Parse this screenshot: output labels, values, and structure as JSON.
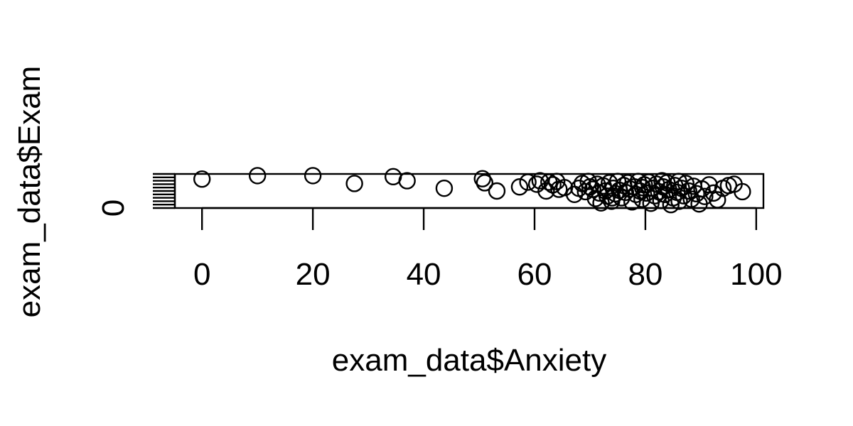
{
  "chart_data": {
    "type": "scatter",
    "title": "",
    "xlabel": "exam_data$Anxiety",
    "ylabel": "exam_data$Exam",
    "xlim": [
      -4.9,
      101.3
    ],
    "ylim": [
      0,
      100
    ],
    "xticks": [
      0,
      20,
      40,
      60,
      80,
      100
    ],
    "yticks": [
      0,
      10,
      20,
      30,
      40,
      50,
      60,
      70,
      80,
      90,
      100
    ],
    "ytick_labels_shown": [
      "0"
    ],
    "grid": false,
    "legend": "none",
    "marker": "open-circle",
    "points": [
      {
        "x": 0.0,
        "y": 85
      },
      {
        "x": 10.0,
        "y": 95
      },
      {
        "x": 20.0,
        "y": 95
      },
      {
        "x": 27.5,
        "y": 72
      },
      {
        "x": 34.5,
        "y": 92
      },
      {
        "x": 37.0,
        "y": 80
      },
      {
        "x": 43.7,
        "y": 58
      },
      {
        "x": 50.6,
        "y": 86
      },
      {
        "x": 51.0,
        "y": 74
      },
      {
        "x": 53.2,
        "y": 50
      },
      {
        "x": 57.3,
        "y": 62
      },
      {
        "x": 58.8,
        "y": 76
      },
      {
        "x": 60.4,
        "y": 70
      },
      {
        "x": 61.0,
        "y": 80
      },
      {
        "x": 62.1,
        "y": 50
      },
      {
        "x": 62.6,
        "y": 76
      },
      {
        "x": 63.3,
        "y": 68
      },
      {
        "x": 64.0,
        "y": 78
      },
      {
        "x": 64.4,
        "y": 55
      },
      {
        "x": 65.4,
        "y": 60
      },
      {
        "x": 67.2,
        "y": 40
      },
      {
        "x": 68.0,
        "y": 58
      },
      {
        "x": 68.6,
        "y": 72
      },
      {
        "x": 69.2,
        "y": 48
      },
      {
        "x": 69.7,
        "y": 78
      },
      {
        "x": 70.0,
        "y": 62
      },
      {
        "x": 70.5,
        "y": 55
      },
      {
        "x": 71.0,
        "y": 28
      },
      {
        "x": 71.3,
        "y": 70
      },
      {
        "x": 71.7,
        "y": 44
      },
      {
        "x": 72.0,
        "y": 15
      },
      {
        "x": 72.4,
        "y": 65
      },
      {
        "x": 72.8,
        "y": 50
      },
      {
        "x": 73.1,
        "y": 35
      },
      {
        "x": 73.5,
        "y": 74
      },
      {
        "x": 73.9,
        "y": 20
      },
      {
        "x": 74.2,
        "y": 58
      },
      {
        "x": 74.6,
        "y": 42
      },
      {
        "x": 75.0,
        "y": 78
      },
      {
        "x": 75.3,
        "y": 52
      },
      {
        "x": 75.7,
        "y": 30
      },
      {
        "x": 76.1,
        "y": 66
      },
      {
        "x": 76.4,
        "y": 46
      },
      {
        "x": 76.8,
        "y": 74
      },
      {
        "x": 77.2,
        "y": 56
      },
      {
        "x": 77.6,
        "y": 18
      },
      {
        "x": 78.0,
        "y": 62
      },
      {
        "x": 78.3,
        "y": 40
      },
      {
        "x": 78.7,
        "y": 78
      },
      {
        "x": 79.0,
        "y": 50
      },
      {
        "x": 79.4,
        "y": 26
      },
      {
        "x": 79.8,
        "y": 68
      },
      {
        "x": 80.2,
        "y": 44
      },
      {
        "x": 80.6,
        "y": 76
      },
      {
        "x": 81.0,
        "y": 14
      },
      {
        "x": 81.3,
        "y": 58
      },
      {
        "x": 81.7,
        "y": 36
      },
      {
        "x": 82.0,
        "y": 70
      },
      {
        "x": 82.4,
        "y": 48
      },
      {
        "x": 82.8,
        "y": 22
      },
      {
        "x": 83.2,
        "y": 62
      },
      {
        "x": 83.5,
        "y": 40
      },
      {
        "x": 83.9,
        "y": 74
      },
      {
        "x": 84.2,
        "y": 54
      },
      {
        "x": 84.6,
        "y": 10
      },
      {
        "x": 85.0,
        "y": 30
      },
      {
        "x": 85.3,
        "y": 66
      },
      {
        "x": 85.7,
        "y": 46
      },
      {
        "x": 86.1,
        "y": 20
      },
      {
        "x": 86.5,
        "y": 58
      },
      {
        "x": 86.9,
        "y": 36
      },
      {
        "x": 87.3,
        "y": 72
      },
      {
        "x": 87.8,
        "y": 50
      },
      {
        "x": 88.3,
        "y": 26
      },
      {
        "x": 88.7,
        "y": 64
      },
      {
        "x": 89.2,
        "y": 42
      },
      {
        "x": 89.7,
        "y": 12
      },
      {
        "x": 90.2,
        "y": 56
      },
      {
        "x": 90.7,
        "y": 34
      },
      {
        "x": 91.5,
        "y": 68
      },
      {
        "x": 92.3,
        "y": 44
      },
      {
        "x": 93.0,
        "y": 24
      },
      {
        "x": 94.0,
        "y": 58
      },
      {
        "x": 95.0,
        "y": 66
      },
      {
        "x": 96.0,
        "y": 70
      },
      {
        "x": 97.5,
        "y": 48
      },
      {
        "x": 83.0,
        "y": 80
      },
      {
        "x": 74.0,
        "y": 30
      },
      {
        "x": 79.5,
        "y": 60
      },
      {
        "x": 86.0,
        "y": 78
      }
    ]
  }
}
